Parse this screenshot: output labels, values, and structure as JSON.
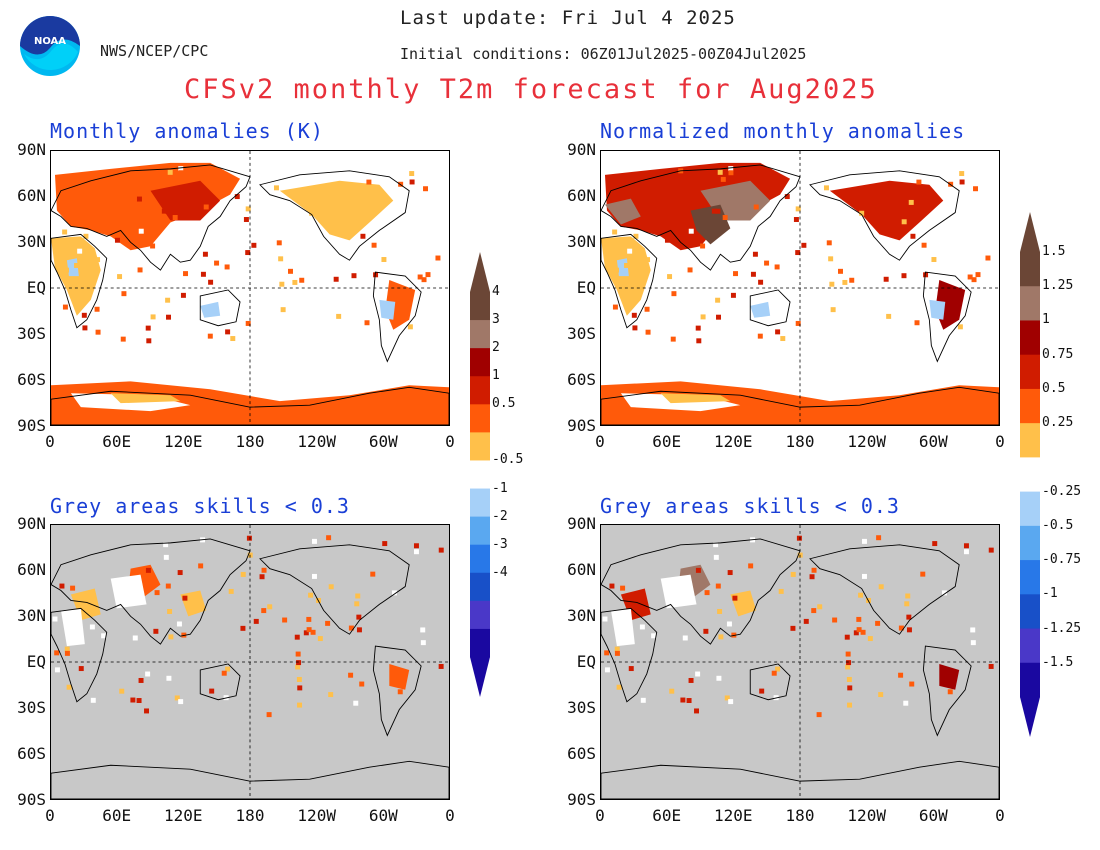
{
  "header": {
    "org": "NWS/NCEP/CPC",
    "logo_text": "NOAA",
    "last_update": "Last update: Fri Jul 4 2025",
    "initial_conditions": "Initial conditions: 06Z01Jul2025-00Z04Jul2025",
    "main_title": "CFSv2 monthly T2m forecast for Aug2025"
  },
  "panels": {
    "top_left_title": "Monthly anomalies (K)",
    "top_right_title": "Normalized monthly anomalies",
    "bottom_left_title": "Grey areas skills < 0.3",
    "bottom_right_title": "Grey areas skills < 0.3"
  },
  "axes": {
    "lat_labels": [
      "90N",
      "60N",
      "30N",
      "EQ",
      "30S",
      "60S",
      "90S"
    ],
    "lon_labels": [
      "0",
      "60E",
      "120E",
      "180",
      "120W",
      "60W",
      "0"
    ]
  },
  "colorbar_left": {
    "labels": [
      "4",
      "3",
      "2",
      "1",
      "0.5",
      "-0.5",
      "-1",
      "-2",
      "-3",
      "-4"
    ]
  },
  "colorbar_right": {
    "labels": [
      "1.5",
      "1.25",
      "1",
      "0.75",
      "0.5",
      "0.25",
      "-0.25",
      "-0.5",
      "-0.75",
      "-1",
      "-1.25",
      "-1.5"
    ]
  },
  "colors": {
    "warm": [
      "#ffc04a",
      "#ff5a0a",
      "#d01c00",
      "#a00000",
      "#a07868",
      "#6b4636"
    ],
    "cool": [
      "#a6d0f8",
      "#5aa8f0",
      "#2878e8",
      "#1850c8",
      "#4a38c8",
      "#1a08a0"
    ],
    "skill_grey": "#c8c8c8",
    "title_red": "#e8303a",
    "label_blue": "#1a3fd6"
  }
}
